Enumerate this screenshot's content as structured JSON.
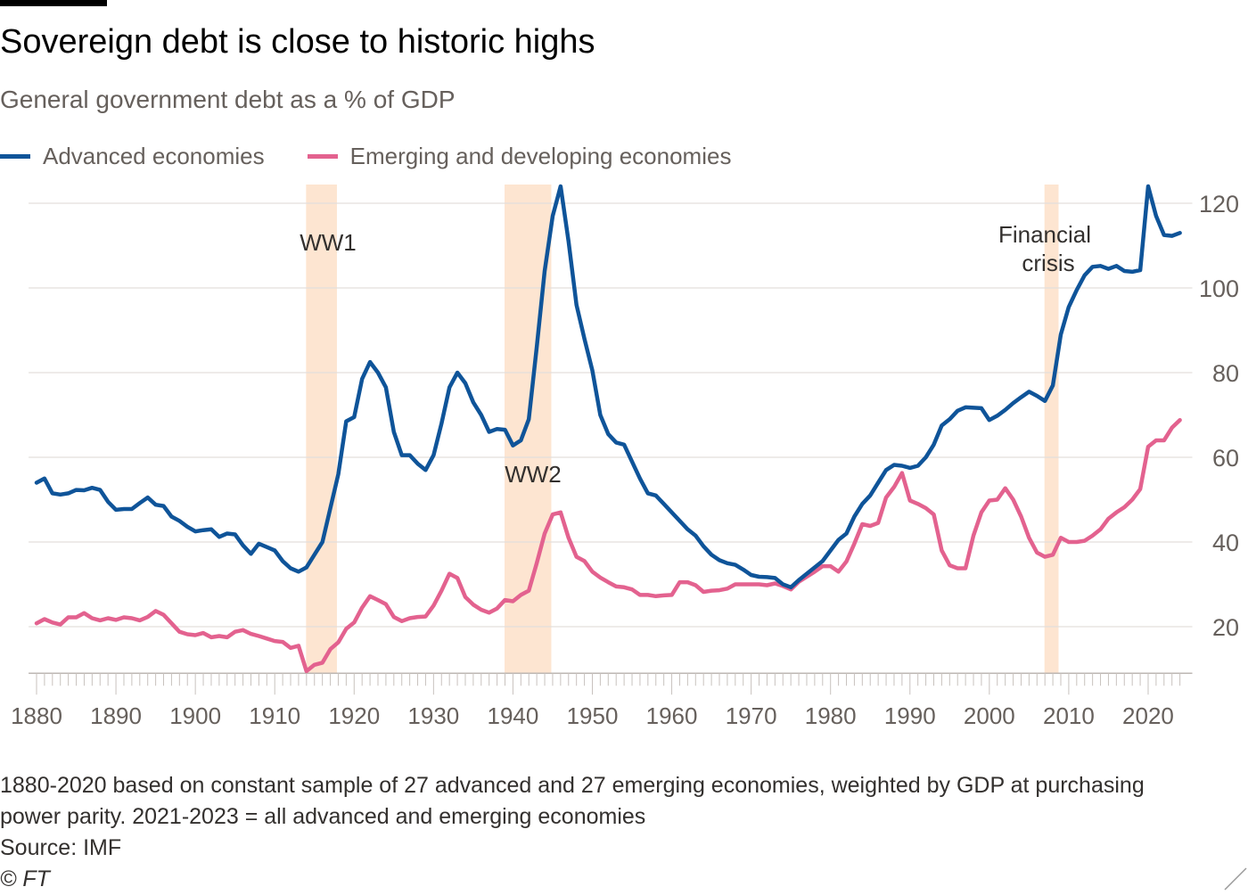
{
  "header": {
    "title": "Sovereign debt is close to historic highs",
    "subtitle": "General government debt as a % of GDP"
  },
  "footer": {
    "note_line1": "1880-2020 based on constant sample of 27 advanced and 27 emerging economies, weighted by GDP at purchasing",
    "note_line2": "power parity. 2021-2023 = all advanced and emerging economies",
    "source": "Source: IMF",
    "credit": "© FT"
  },
  "chart_data": {
    "type": "line",
    "title": "Sovereign debt is close to historic highs",
    "subtitle": "General government debt as a % of GDP",
    "xlabel": "",
    "ylabel": "",
    "x_start": 1880,
    "x_end": 2024,
    "xlim": [
      1879,
      2025
    ],
    "ylim": [
      9,
      124
    ],
    "y_ticks": [
      20,
      40,
      60,
      80,
      100,
      120
    ],
    "x_ticks": [
      1880,
      1890,
      1900,
      1910,
      1920,
      1930,
      1940,
      1950,
      1960,
      1970,
      1980,
      1990,
      2000,
      2010,
      2020
    ],
    "grid": true,
    "y_axis_side": "right",
    "legend_position": "top-left",
    "series": [
      {
        "name": "Advanced economies",
        "color": "#0f5499",
        "values": [
          54,
          55,
          51.5,
          51.2,
          51.5,
          52.3,
          52.2,
          52.8,
          52.3,
          49.5,
          47.6,
          47.8,
          47.8,
          49.2,
          50.5,
          48.8,
          48.5,
          46,
          45,
          43.6,
          42.5,
          42.8,
          43,
          41.2,
          42,
          41.8,
          39.2,
          37.2,
          39.6,
          38.8,
          38,
          35.5,
          33.8,
          33,
          34,
          37,
          40,
          48,
          56,
          68.5,
          69.5,
          78.5,
          82.5,
          80,
          76.5,
          66,
          60.5,
          60.5,
          58.5,
          57,
          60.5,
          68,
          76.5,
          80,
          77.5,
          73,
          70,
          66,
          66.7,
          66.5,
          62.8,
          64,
          69,
          86,
          104,
          117,
          124,
          111,
          96,
          88,
          80.5,
          70,
          65.5,
          63.5,
          63,
          59,
          55,
          51.5,
          51,
          49,
          47,
          45,
          43,
          41.5,
          39,
          37,
          35.7,
          35,
          34.6,
          33.5,
          32.2,
          31.8,
          31.7,
          31.5,
          30,
          29.3,
          31,
          32.5,
          34,
          35.5,
          38,
          40.5,
          42,
          46,
          49,
          51,
          54,
          57,
          58.2,
          58,
          57.5,
          58,
          60,
          63,
          67.5,
          69,
          71,
          71.8,
          71.7,
          71.6,
          68.8,
          69.8,
          71.2,
          72.8,
          74.2,
          75.5,
          74.5,
          73.3,
          77,
          89,
          95.5,
          99.5,
          103,
          105,
          105.2,
          104.5,
          105.2,
          104,
          103.8,
          104.2,
          124,
          117,
          112.5,
          112.3,
          113
        ]
      },
      {
        "name": "Emerging and developing economies",
        "color": "#e3628f",
        "values": [
          20.8,
          21.8,
          21,
          20.5,
          22.2,
          22.2,
          23.2,
          22,
          21.5,
          22,
          21.6,
          22.2,
          22,
          21.5,
          22.3,
          23.7,
          22.8,
          20.8,
          18.8,
          18.2,
          18,
          18.5,
          17.5,
          17.8,
          17.5,
          18.8,
          19.2,
          18.3,
          17.8,
          17.2,
          16.6,
          16.4,
          15,
          15.5,
          9.5,
          11,
          11.5,
          14.7,
          16.3,
          19.5,
          21,
          24.5,
          27.2,
          26.3,
          25.3,
          22.3,
          21.3,
          22,
          22.3,
          22.4,
          25,
          28.5,
          32.5,
          31.5,
          27,
          25.2,
          24,
          23.3,
          24.3,
          26.3,
          26,
          27.5,
          28.5,
          35,
          42,
          46.5,
          47,
          41,
          36.5,
          35.5,
          33,
          31.6,
          30.5,
          29.5,
          29.3,
          28.8,
          27.5,
          27.5,
          27.2,
          27.4,
          27.5,
          30.5,
          30.5,
          29.8,
          28.2,
          28.5,
          28.6,
          29,
          30,
          30,
          30,
          30,
          29.8,
          30.2,
          29.6,
          28.8,
          30.6,
          31.8,
          33,
          34.3,
          34.3,
          33,
          35.4,
          39.6,
          44.2,
          43.8,
          44.5,
          50.5,
          53,
          56.3,
          49.8,
          49,
          48,
          46.5,
          38,
          34.5,
          33.8,
          33.8,
          41.5,
          47,
          49.8,
          50,
          52.7,
          50,
          46,
          41,
          37.5,
          36.5,
          37,
          41,
          40,
          40,
          40.3,
          41.5,
          43,
          45.5,
          47,
          48.2,
          50,
          52.5,
          62.5,
          64,
          64,
          67,
          68.8
        ]
      }
    ],
    "annotations": [
      {
        "label": "WW1",
        "start": 1914,
        "end": 1918
      },
      {
        "label": "WW2",
        "start": 1939,
        "end": 1945
      },
      {
        "label_line1": "Financial",
        "label_line2": "crisis",
        "start": 2007,
        "end": 2009
      }
    ],
    "band_color": "#fde5d1"
  }
}
